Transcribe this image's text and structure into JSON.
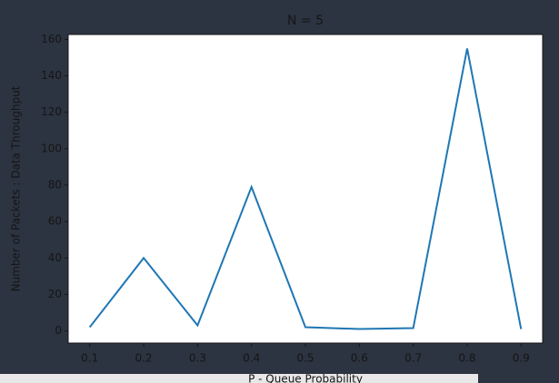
{
  "chart_data": {
    "type": "line",
    "title": "N = 5",
    "xlabel": "P - Queue Probability",
    "ylabel": "Number of Packets : Data Throughput",
    "x": [
      0.1,
      0.2,
      0.3,
      0.4,
      0.5,
      0.6,
      0.7,
      0.8,
      0.9
    ],
    "values": [
      2,
      40,
      3,
      79,
      2,
      1,
      1.5,
      155,
      1
    ],
    "color": "#1f77b4",
    "xlim": [
      0.06,
      0.94
    ],
    "xticks": [
      0.1,
      0.2,
      0.3,
      0.4,
      0.5,
      0.6,
      0.7,
      0.8,
      0.9
    ],
    "ylim": [
      -6.7,
      162.7
    ],
    "yticks": [
      0,
      20,
      40,
      60,
      80,
      100,
      120,
      140,
      160
    ],
    "grid": false
  }
}
